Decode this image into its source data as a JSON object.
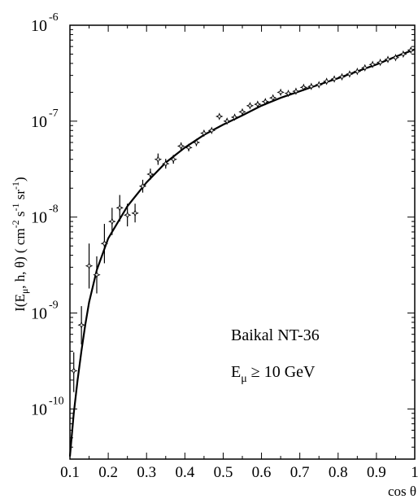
{
  "chart_data": {
    "type": "scatter",
    "xlabel": "cos θ",
    "ylabel_parts": {
      "a": "I(E",
      "a_sub": "μ",
      "b": ", h, θ)  ( cm",
      "b_sup": "-2",
      "c": " s",
      "c_sup": "-1",
      "d": " sr",
      "d_sup": "-1",
      "e": ")"
    },
    "xlim": [
      0.1,
      1.0
    ],
    "ylim": [
      3e-11,
      1e-06
    ],
    "yscale": "log",
    "x_ticks": [
      {
        "v": 0.1,
        "label": "0.1"
      },
      {
        "v": 0.2,
        "label": "0.2"
      },
      {
        "v": 0.3,
        "label": "0.3"
      },
      {
        "v": 0.4,
        "label": "0.4"
      },
      {
        "v": 0.5,
        "label": "0.5"
      },
      {
        "v": 0.6,
        "label": "0.6"
      },
      {
        "v": 0.7,
        "label": "0.7"
      },
      {
        "v": 0.8,
        "label": "0.8"
      },
      {
        "v": 0.9,
        "label": "0.9"
      },
      {
        "v": 1.0,
        "label": "1"
      }
    ],
    "y_ticks": [
      {
        "v": 1e-06,
        "base": "10",
        "exp": "-6"
      },
      {
        "v": 1e-07,
        "base": "10",
        "exp": "-7"
      },
      {
        "v": 1e-08,
        "base": "10",
        "exp": "-8"
      },
      {
        "v": 1e-09,
        "base": "10",
        "exp": "-9"
      },
      {
        "v": 1e-10,
        "base": "10",
        "exp": "-10"
      }
    ],
    "annotations": {
      "line1": "Baikal NT-36",
      "line2_main": "E",
      "line2_sub": "μ",
      "line2_rest": " ≥ 10 GeV"
    },
    "series": [
      {
        "kind": "data_points",
        "points": [
          {
            "x": 0.11,
            "y": 2.5e-10,
            "lo": 1.5e-10,
            "hi": 3.9e-10
          },
          {
            "x": 0.13,
            "y": 7.5e-10,
            "lo": 4.7e-10,
            "hi": 1.18e-09
          },
          {
            "x": 0.15,
            "y": 3.1e-09,
            "lo": 1.8e-09,
            "hi": 5.3e-09
          },
          {
            "x": 0.17,
            "y": 2.5e-09,
            "lo": 1.6e-09,
            "hi": 3.9e-09
          },
          {
            "x": 0.19,
            "y": 5.3e-09,
            "lo": 3.3e-09,
            "hi": 8.5e-09
          },
          {
            "x": 0.21,
            "y": 9e-09,
            "lo": 6.5e-09,
            "hi": 1.25e-08
          },
          {
            "x": 0.23,
            "y": 1.25e-08,
            "lo": 9e-09,
            "hi": 1.7e-08
          },
          {
            "x": 0.25,
            "y": 1.05e-08,
            "lo": 8e-09,
            "hi": 1.38e-08
          },
          {
            "x": 0.27,
            "y": 1.1e-08,
            "lo": 8.8e-09,
            "hi": 1.38e-08
          },
          {
            "x": 0.29,
            "y": 2.1e-08,
            "lo": 1.8e-08,
            "hi": 2.45e-08
          },
          {
            "x": 0.31,
            "y": 2.8e-08,
            "lo": 2.45e-08,
            "hi": 3.2e-08
          },
          {
            "x": 0.33,
            "y": 4e-08,
            "lo": 3.5e-08,
            "hi": 4.6e-08
          },
          {
            "x": 0.35,
            "y": 3.6e-08,
            "lo": 3.2e-08,
            "hi": 4.05e-08
          },
          {
            "x": 0.37,
            "y": 4e-08,
            "lo": 3.6e-08,
            "hi": 4.45e-08
          },
          {
            "x": 0.39,
            "y": 5.5e-08,
            "lo": 5e-08,
            "hi": 6e-08
          },
          {
            "x": 0.41,
            "y": 5.3e-08,
            "lo": 4.85e-08,
            "hi": 5.8e-08
          },
          {
            "x": 0.43,
            "y": 6e-08,
            "lo": 5.5e-08,
            "hi": 6.5e-08
          },
          {
            "x": 0.45,
            "y": 7.5e-08,
            "lo": 7e-08,
            "hi": 8e-08
          },
          {
            "x": 0.47,
            "y": 8e-08,
            "lo": 7.5e-08,
            "hi": 8.5e-08
          },
          {
            "x": 0.49,
            "y": 1.12e-07,
            "lo": 1.06e-07,
            "hi": 1.18e-07
          },
          {
            "x": 0.51,
            "y": 1e-07,
            "lo": 9.5e-08,
            "hi": 1.05e-07
          },
          {
            "x": 0.53,
            "y": 1.1e-07,
            "lo": 1.05e-07,
            "hi": 1.15e-07
          },
          {
            "x": 0.55,
            "y": 1.25e-07,
            "lo": 1.2e-07,
            "hi": 1.3e-07
          },
          {
            "x": 0.57,
            "y": 1.45e-07,
            "lo": 1.4e-07,
            "hi": 1.5e-07
          },
          {
            "x": 0.59,
            "y": 1.5e-07,
            "lo": 1.45e-07,
            "hi": 1.55e-07
          },
          {
            "x": 0.61,
            "y": 1.6e-07,
            "lo": 1.55e-07,
            "hi": 1.65e-07
          },
          {
            "x": 0.63,
            "y": 1.75e-07,
            "lo": 1.7e-07,
            "hi": 1.8e-07
          },
          {
            "x": 0.65,
            "y": 2e-07,
            "lo": 1.95e-07,
            "hi": 2.05e-07
          },
          {
            "x": 0.67,
            "y": 1.95e-07,
            "lo": 1.9e-07,
            "hi": 2e-07
          },
          {
            "x": 0.69,
            "y": 2.05e-07,
            "lo": 2e-07,
            "hi": 2.1e-07
          },
          {
            "x": 0.71,
            "y": 2.25e-07,
            "lo": 2.2e-07,
            "hi": 2.3e-07
          },
          {
            "x": 0.73,
            "y": 2.3e-07,
            "lo": 2.25e-07,
            "hi": 2.35e-07
          },
          {
            "x": 0.75,
            "y": 2.4e-07,
            "lo": 2.35e-07,
            "hi": 2.45e-07
          },
          {
            "x": 0.77,
            "y": 2.6e-07,
            "lo": 2.55e-07,
            "hi": 2.65e-07
          },
          {
            "x": 0.79,
            "y": 2.75e-07,
            "lo": 2.7e-07,
            "hi": 2.8e-07
          },
          {
            "x": 0.81,
            "y": 2.9e-07,
            "lo": 2.85e-07,
            "hi": 2.95e-07
          },
          {
            "x": 0.83,
            "y": 3.1e-07,
            "lo": 3.05e-07,
            "hi": 3.15e-07
          },
          {
            "x": 0.85,
            "y": 3.3e-07,
            "lo": 3.25e-07,
            "hi": 3.35e-07
          },
          {
            "x": 0.87,
            "y": 3.6e-07,
            "lo": 3.55e-07,
            "hi": 3.65e-07
          },
          {
            "x": 0.89,
            "y": 3.9e-07,
            "lo": 3.85e-07,
            "hi": 3.95e-07
          },
          {
            "x": 0.91,
            "y": 4.1e-07,
            "lo": 4.05e-07,
            "hi": 4.15e-07
          },
          {
            "x": 0.93,
            "y": 4.4e-07,
            "lo": 4.35e-07,
            "hi": 4.45e-07
          },
          {
            "x": 0.95,
            "y": 4.6e-07,
            "lo": 4.55e-07,
            "hi": 4.65e-07
          },
          {
            "x": 0.97,
            "y": 5e-07,
            "lo": 4.9e-07,
            "hi": 5.1e-07
          },
          {
            "x": 0.99,
            "y": 5.5e-07,
            "lo": 5.4e-07,
            "hi": 5.6e-07
          }
        ]
      },
      {
        "kind": "curve",
        "points": [
          {
            "x": 0.1,
            "y": 3.2e-11
          },
          {
            "x": 0.11,
            "y": 9e-11
          },
          {
            "x": 0.12,
            "y": 2e-10
          },
          {
            "x": 0.13,
            "y": 4e-10
          },
          {
            "x": 0.14,
            "y": 7.5e-10
          },
          {
            "x": 0.15,
            "y": 1.3e-09
          },
          {
            "x": 0.17,
            "y": 2.8e-09
          },
          {
            "x": 0.2,
            "y": 6e-09
          },
          {
            "x": 0.25,
            "y": 1.3e-08
          },
          {
            "x": 0.3,
            "y": 2.3e-08
          },
          {
            "x": 0.35,
            "y": 3.7e-08
          },
          {
            "x": 0.4,
            "y": 5.3e-08
          },
          {
            "x": 0.45,
            "y": 7.2e-08
          },
          {
            "x": 0.5,
            "y": 9.2e-08
          },
          {
            "x": 0.55,
            "y": 1.15e-07
          },
          {
            "x": 0.6,
            "y": 1.45e-07
          },
          {
            "x": 0.65,
            "y": 1.75e-07
          },
          {
            "x": 0.7,
            "y": 2.05e-07
          },
          {
            "x": 0.75,
            "y": 2.4e-07
          },
          {
            "x": 0.8,
            "y": 2.8e-07
          },
          {
            "x": 0.85,
            "y": 3.3e-07
          },
          {
            "x": 0.9,
            "y": 3.9e-07
          },
          {
            "x": 0.95,
            "y": 4.7e-07
          },
          {
            "x": 1.0,
            "y": 5.6e-07
          }
        ]
      }
    ]
  }
}
